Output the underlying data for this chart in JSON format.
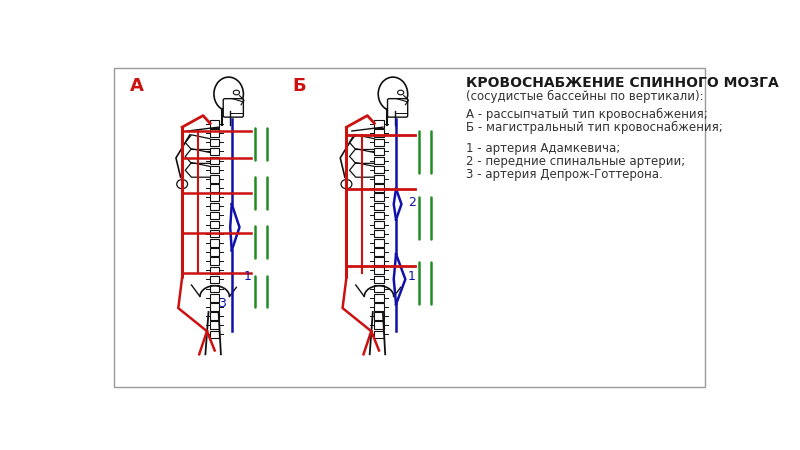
{
  "title": "КРОВОСНАБЖЕНИЕ СПИННОГО МОЗГА",
  "subtitle": "(сосудистые бассейны по вертикали):",
  "legend_lines": [
    "А - рассыпчатый тип кровоснабжения;",
    "Б - магистральный тип кровоснабжения;",
    "",
    "1 - артерия Адамкевича;",
    "2 - передние спинальные артерии;",
    "3 - артерия Депрож-Готтерона."
  ],
  "label_A": "А",
  "label_B": "Б",
  "text_color": "#333333",
  "title_fontsize": 10.0,
  "legend_fontsize": 8.5,
  "red": "#cc1111",
  "blue": "#1111aa",
  "green": "#228B22",
  "black": "#111111"
}
